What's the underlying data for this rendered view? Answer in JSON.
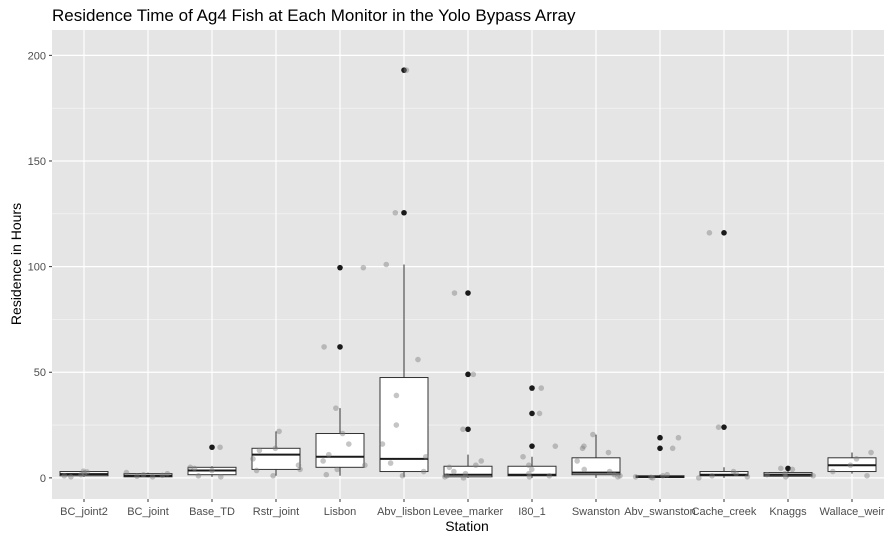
{
  "chart_data": {
    "type": "boxplot",
    "title": "Residence Time of Ag4 Fish at Each Monitor in the Yolo Bypass Array",
    "xlabel": "Station",
    "ylabel": "Residence in Hours",
    "ylim": [
      -10,
      212
    ],
    "yticks": [
      0,
      50,
      100,
      150,
      200
    ],
    "grid": true,
    "background": "#e5e5e5",
    "grid_color": "#ffffff",
    "point_color": "#7f7f7f",
    "outlier_color": "#1a1a1a",
    "categories": [
      "BC_joint2",
      "BC_joint",
      "Base_TD",
      "Rstr_joint",
      "Lisbon",
      "Abv_lisbon",
      "Levee_marker",
      "I80_1",
      "Swanston",
      "Abv_swanston",
      "Cache_creek",
      "Knaggs",
      "Wallace_weir"
    ],
    "boxes": [
      {
        "station": "BC_joint2",
        "whisker_low": 0.5,
        "q1": 1,
        "median": 1.8,
        "q3": 3,
        "whisker_high": 3.5,
        "outliers": []
      },
      {
        "station": "BC_joint",
        "whisker_low": 0.3,
        "q1": 0.5,
        "median": 1,
        "q3": 2,
        "whisker_high": 2.5,
        "outliers": []
      },
      {
        "station": "Base_TD",
        "whisker_low": 0.5,
        "q1": 1.5,
        "median": 3.5,
        "q3": 5,
        "whisker_high": 5.5,
        "outliers": [
          14.5
        ]
      },
      {
        "station": "Rstr_joint",
        "whisker_low": 1,
        "q1": 4,
        "median": 11,
        "q3": 14,
        "whisker_high": 22,
        "outliers": []
      },
      {
        "station": "Lisbon",
        "whisker_low": 1,
        "q1": 5,
        "median": 10,
        "q3": 21,
        "whisker_high": 33,
        "outliers": [
          62,
          99.5
        ]
      },
      {
        "station": "Abv_lisbon",
        "whisker_low": 0.5,
        "q1": 3,
        "median": 9,
        "q3": 47.5,
        "whisker_high": 101,
        "outliers": [
          125.5,
          193
        ]
      },
      {
        "station": "Levee_marker",
        "whisker_low": 0,
        "q1": 0.5,
        "median": 1.5,
        "q3": 5.5,
        "whisker_high": 11,
        "outliers": [
          23,
          49,
          87.5
        ]
      },
      {
        "station": "I80_1",
        "whisker_low": 0,
        "q1": 1,
        "median": 1.5,
        "q3": 5.5,
        "whisker_high": 10,
        "outliers": [
          15,
          30.5,
          42.5
        ]
      },
      {
        "station": "Swanston",
        "whisker_low": 0,
        "q1": 1.5,
        "median": 2.5,
        "q3": 9.5,
        "whisker_high": 20.5,
        "outliers": []
      },
      {
        "station": "Abv_swanston",
        "whisker_low": 0,
        "q1": 0.2,
        "median": 0.5,
        "q3": 1,
        "whisker_high": 1.5,
        "outliers": [
          14,
          19
        ]
      },
      {
        "station": "Cache_creek",
        "whisker_low": 0,
        "q1": 1,
        "median": 1.5,
        "q3": 3,
        "whisker_high": 5,
        "outliers": [
          24,
          116
        ]
      },
      {
        "station": "Knaggs",
        "whisker_low": 0.3,
        "q1": 0.8,
        "median": 1.5,
        "q3": 2.5,
        "whisker_high": 4,
        "outliers": [
          4.5
        ]
      },
      {
        "station": "Wallace_weir",
        "whisker_low": 2,
        "q1": 3,
        "median": 6,
        "q3": 9.5,
        "whisker_high": 12,
        "outliers": []
      }
    ],
    "jitter_points": [
      {
        "station": "BC_joint2",
        "values": [
          3.2,
          2.8,
          1.0,
          0.5,
          1.5,
          2.2
        ]
      },
      {
        "station": "BC_joint",
        "values": [
          2.5,
          2.0,
          0.5,
          1.5,
          0.8,
          1.2
        ]
      },
      {
        "station": "Base_TD",
        "values": [
          14.5,
          5.0,
          3.5,
          1.0,
          0.5,
          4.5
        ]
      },
      {
        "station": "Rstr_joint",
        "values": [
          22,
          14,
          13,
          9,
          6,
          4,
          3.5,
          1
        ]
      },
      {
        "station": "Lisbon",
        "values": [
          99.5,
          62,
          33,
          21,
          16,
          11,
          8,
          6,
          4,
          1.5
        ]
      },
      {
        "station": "Abv_lisbon",
        "values": [
          193,
          125.5,
          101,
          56,
          39,
          25,
          16,
          10,
          7,
          3,
          1
        ]
      },
      {
        "station": "Levee_marker",
        "values": [
          87.5,
          49,
          23,
          8,
          6,
          5,
          3,
          2,
          1,
          0.5,
          0
        ]
      },
      {
        "station": "I80_1",
        "values": [
          42.5,
          30.5,
          15,
          10,
          6,
          4,
          2,
          1,
          0.5
        ]
      },
      {
        "station": "Swanston",
        "values": [
          20.5,
          15,
          14,
          12,
          8,
          4,
          3,
          1.5,
          1,
          0.5
        ]
      },
      {
        "station": "Abv_swanston",
        "values": [
          19,
          14,
          1.5,
          1,
          0.5,
          0.3,
          0
        ]
      },
      {
        "station": "Cache_creek",
        "values": [
          116,
          24,
          3,
          2,
          1,
          0.5,
          0
        ]
      },
      {
        "station": "Knaggs",
        "values": [
          4.5,
          4,
          2,
          1.5,
          1,
          0.5
        ]
      },
      {
        "station": "Wallace_weir",
        "values": [
          12,
          9,
          6,
          3,
          1
        ]
      }
    ]
  }
}
